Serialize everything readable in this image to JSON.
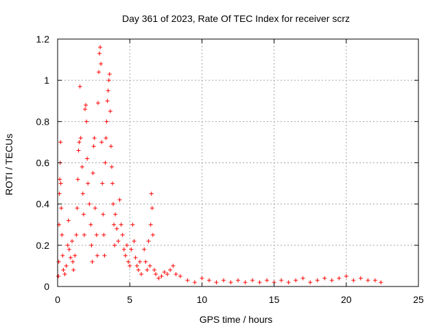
{
  "chart_data": {
    "type": "scatter",
    "title": "Day 361 of 2023, Rate Of TEC Index for receiver scrz",
    "xlabel": "GPS time / hours",
    "ylabel": "ROTI / TECUs",
    "xlim": [
      0,
      25
    ],
    "ylim": [
      0,
      1.2
    ],
    "xticks": [
      0,
      5,
      10,
      15,
      20,
      25
    ],
    "xtick_labels": [
      "0",
      "5",
      "10",
      "15",
      "20",
      "25"
    ],
    "yticks": [
      0,
      0.2,
      0.4,
      0.6,
      0.8,
      1.0,
      1.2
    ],
    "ytick_labels": [
      "0",
      "0.2",
      "0.4",
      "0.6",
      "0.8",
      "1",
      "1.2"
    ],
    "grid": true,
    "grid_style": "dotted",
    "marker": "+",
    "marker_color": "#ff0000",
    "series": [
      {
        "points": [
          [
            0.05,
            0.05
          ],
          [
            0.08,
            0.12
          ],
          [
            0.1,
            0.3
          ],
          [
            0.12,
            0.45
          ],
          [
            0.15,
            0.52
          ],
          [
            0.18,
            0.6
          ],
          [
            0.2,
            0.7
          ],
          [
            0.22,
            0.5
          ],
          [
            0.25,
            0.38
          ],
          [
            0.3,
            0.25
          ],
          [
            0.35,
            0.15
          ],
          [
            0.4,
            0.08
          ],
          [
            0.5,
            0.06
          ],
          [
            0.6,
            0.1
          ],
          [
            0.7,
            0.2
          ],
          [
            0.75,
            0.32
          ],
          [
            0.8,
            0.18
          ],
          [
            0.9,
            0.14
          ],
          [
            1.0,
            0.22
          ],
          [
            1.05,
            0.12
          ],
          [
            1.1,
            0.08
          ],
          [
            1.2,
            0.15
          ],
          [
            1.3,
            0.25
          ],
          [
            1.35,
            0.38
          ],
          [
            1.4,
            0.52
          ],
          [
            1.45,
            0.66
          ],
          [
            1.5,
            0.7
          ],
          [
            1.55,
            0.97
          ],
          [
            1.6,
            0.72
          ],
          [
            1.7,
            0.58
          ],
          [
            1.75,
            0.45
          ],
          [
            1.8,
            0.35
          ],
          [
            1.85,
            0.25
          ],
          [
            1.9,
            0.86
          ],
          [
            1.95,
            0.88
          ],
          [
            2.0,
            0.8
          ],
          [
            2.05,
            0.62
          ],
          [
            2.1,
            0.5
          ],
          [
            2.2,
            0.4
          ],
          [
            2.3,
            0.3
          ],
          [
            2.35,
            0.2
          ],
          [
            2.4,
            0.12
          ],
          [
            2.45,
            0.55
          ],
          [
            2.5,
            0.68
          ],
          [
            2.55,
            0.72
          ],
          [
            2.6,
            0.38
          ],
          [
            2.7,
            0.25
          ],
          [
            2.75,
            0.15
          ],
          [
            2.8,
            0.89
          ],
          [
            2.85,
            1.04
          ],
          [
            2.9,
            1.13
          ],
          [
            2.95,
            1.16
          ],
          [
            3.0,
            1.08
          ],
          [
            3.05,
            0.7
          ],
          [
            3.1,
            0.5
          ],
          [
            3.15,
            0.35
          ],
          [
            3.2,
            0.25
          ],
          [
            3.25,
            0.15
          ],
          [
            3.3,
            0.6
          ],
          [
            3.35,
            0.72
          ],
          [
            3.4,
            0.8
          ],
          [
            3.45,
            0.9
          ],
          [
            3.5,
            0.95
          ],
          [
            3.55,
            1.0
          ],
          [
            3.6,
            1.03
          ],
          [
            3.65,
            0.85
          ],
          [
            3.7,
            0.68
          ],
          [
            3.75,
            0.58
          ],
          [
            3.8,
            0.5
          ],
          [
            3.85,
            0.4
          ],
          [
            3.9,
            0.3
          ],
          [
            3.95,
            0.2
          ],
          [
            4.0,
            0.35
          ],
          [
            4.1,
            0.28
          ],
          [
            4.2,
            0.22
          ],
          [
            4.3,
            0.42
          ],
          [
            4.4,
            0.3
          ],
          [
            4.5,
            0.25
          ],
          [
            4.6,
            0.18
          ],
          [
            4.7,
            0.15
          ],
          [
            4.8,
            0.2
          ],
          [
            4.9,
            0.12
          ],
          [
            5.0,
            0.1
          ],
          [
            5.1,
            0.18
          ],
          [
            5.2,
            0.3
          ],
          [
            5.3,
            0.22
          ],
          [
            5.4,
            0.14
          ],
          [
            5.5,
            0.1
          ],
          [
            5.6,
            0.08
          ],
          [
            5.7,
            0.12
          ],
          [
            5.8,
            0.06
          ],
          [
            6.0,
            0.18
          ],
          [
            6.1,
            0.12
          ],
          [
            6.2,
            0.08
          ],
          [
            6.3,
            0.22
          ],
          [
            6.4,
            0.1
          ],
          [
            6.45,
            0.3
          ],
          [
            6.5,
            0.45
          ],
          [
            6.55,
            0.38
          ],
          [
            6.6,
            0.25
          ],
          [
            6.7,
            0.08
          ],
          [
            6.8,
            0.06
          ],
          [
            7.0,
            0.04
          ],
          [
            7.2,
            0.05
          ],
          [
            7.4,
            0.07
          ],
          [
            7.6,
            0.06
          ],
          [
            7.8,
            0.08
          ],
          [
            8.0,
            0.1
          ],
          [
            8.2,
            0.06
          ],
          [
            8.5,
            0.05
          ],
          [
            9.0,
            0.03
          ],
          [
            9.5,
            0.02
          ],
          [
            10.0,
            0.04
          ],
          [
            10.5,
            0.03
          ],
          [
            11.0,
            0.02
          ],
          [
            11.5,
            0.03
          ],
          [
            12.0,
            0.02
          ],
          [
            12.5,
            0.03
          ],
          [
            13.0,
            0.02
          ],
          [
            13.5,
            0.03
          ],
          [
            14.0,
            0.02
          ],
          [
            14.5,
            0.03
          ],
          [
            15.0,
            0.02
          ],
          [
            15.5,
            0.03
          ],
          [
            16.0,
            0.02
          ],
          [
            16.5,
            0.03
          ],
          [
            17.0,
            0.04
          ],
          [
            17.5,
            0.02
          ],
          [
            18.0,
            0.03
          ],
          [
            18.5,
            0.04
          ],
          [
            19.0,
            0.03
          ],
          [
            19.5,
            0.04
          ],
          [
            20.0,
            0.05
          ],
          [
            20.5,
            0.03
          ],
          [
            21.0,
            0.04
          ],
          [
            21.5,
            0.03
          ],
          [
            22.0,
            0.03
          ],
          [
            22.4,
            0.02
          ]
        ]
      }
    ]
  }
}
